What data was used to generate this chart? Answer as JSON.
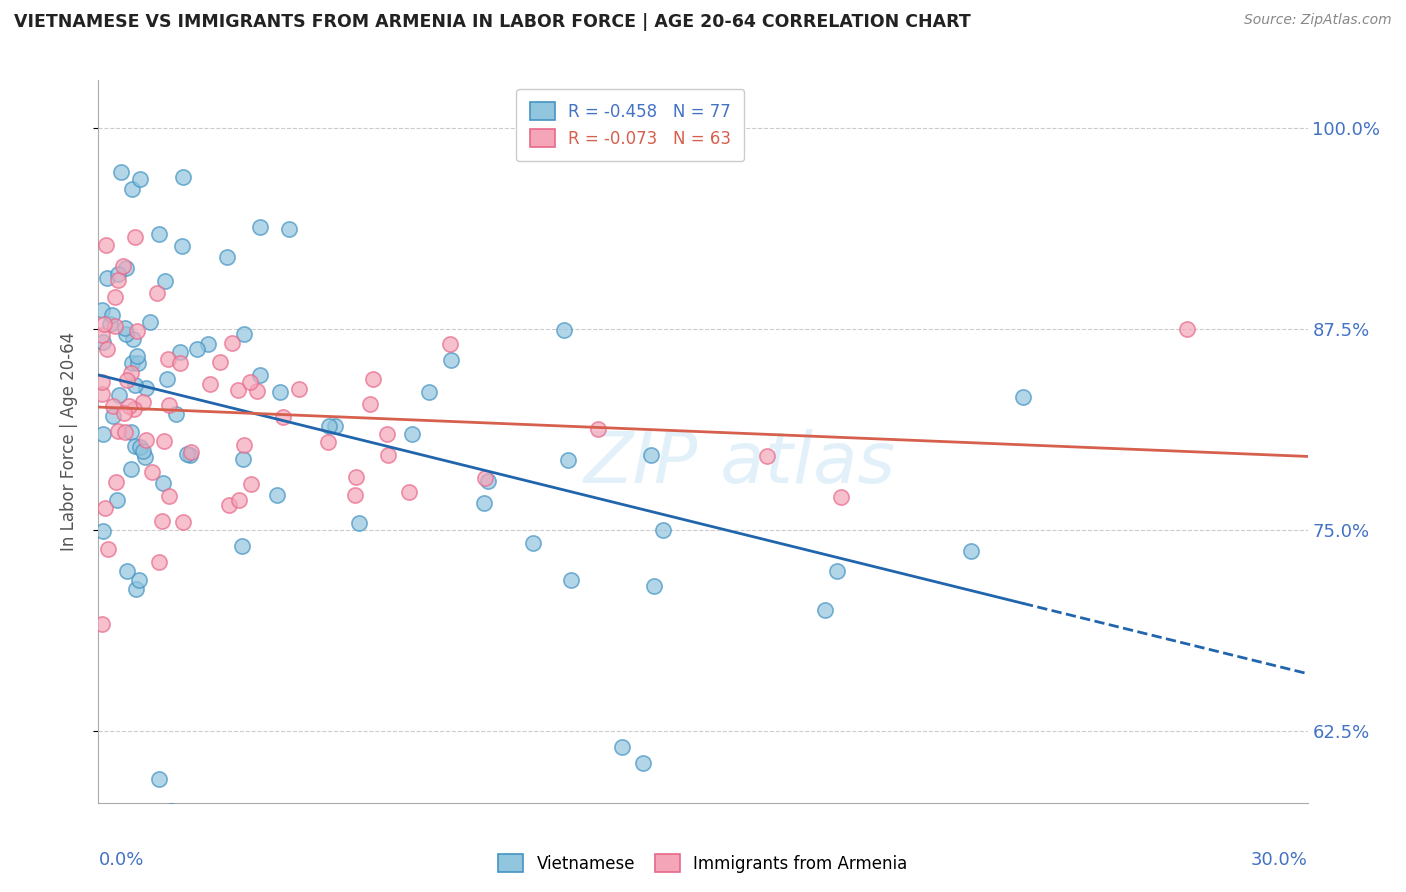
{
  "title": "VIETNAMESE VS IMMIGRANTS FROM ARMENIA IN LABOR FORCE | AGE 20-64 CORRELATION CHART",
  "source": "Source: ZipAtlas.com",
  "ylabel_ticks": [
    62.5,
    75.0,
    87.5,
    100.0
  ],
  "ylabel_labels": [
    "62.5%",
    "75.0%",
    "87.5%",
    "100.0%"
  ],
  "xmin": 0.0,
  "xmax": 30.0,
  "ymin": 58.0,
  "ymax": 103.0,
  "viet_color": "#92c5de",
  "armenia_color": "#f4a6b8",
  "viet_edge_color": "#4393c3",
  "armenia_edge_color": "#e8688a",
  "viet_line_color": "#2166ac",
  "armenia_line_color": "#d6604d",
  "viet_R": -0.458,
  "viet_N": 77,
  "armenia_R": -0.073,
  "armenia_N": 63,
  "legend_label_1": "R = -0.458   N = 77",
  "legend_label_2": "R = -0.073   N = 63",
  "watermark_text": "ZIPatlas",
  "viet_legend": "Vietnamese",
  "armenia_legend": "Immigrants from Armenia"
}
